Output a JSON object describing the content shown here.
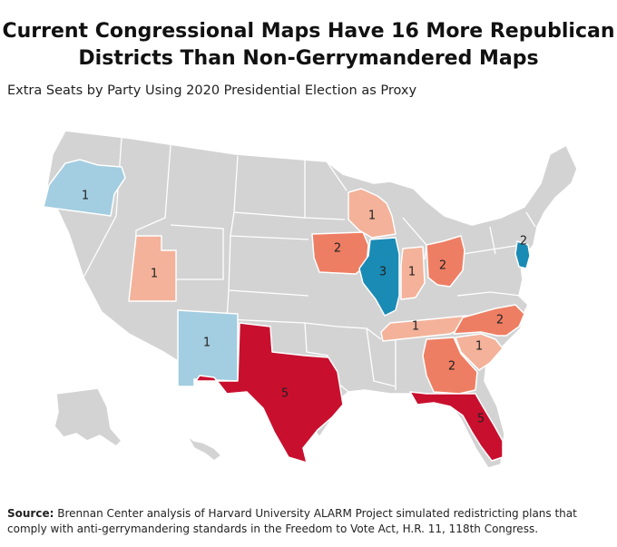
{
  "header": {
    "title_line1": "Current Congressional Maps Have 16 More Republican",
    "title_line2": "Districts Than Non-Gerrymandered Maps",
    "subtitle": "Extra Seats by Party Using 2020 Presidential Election as Proxy"
  },
  "colors": {
    "base": "#d3d3d3",
    "rep_1": "#f3b299",
    "rep_2": "#ee7e63",
    "rep_5": "#c8102e",
    "dem_1": "#a3cde0",
    "dem_strong": "#1a8bb5"
  },
  "states": [
    {
      "name": "Oregon",
      "party": "Democratic",
      "seats": "1"
    },
    {
      "name": "Utah",
      "party": "Republican",
      "seats": "1"
    },
    {
      "name": "New Mexico",
      "party": "Democratic",
      "seats": "1"
    },
    {
      "name": "Texas",
      "party": "Republican",
      "seats": "5"
    },
    {
      "name": "Iowa",
      "party": "Republican",
      "seats": "2"
    },
    {
      "name": "Wisconsin",
      "party": "Republican",
      "seats": "1"
    },
    {
      "name": "Illinois",
      "party": "Democratic",
      "seats": "3"
    },
    {
      "name": "Indiana",
      "party": "Republican",
      "seats": "1"
    },
    {
      "name": "Ohio",
      "party": "Republican",
      "seats": "2"
    },
    {
      "name": "New Jersey",
      "party": "Democratic",
      "seats": "2"
    },
    {
      "name": "Tennessee",
      "party": "Republican",
      "seats": "1"
    },
    {
      "name": "North Carolina",
      "party": "Republican",
      "seats": "2"
    },
    {
      "name": "South Carolina",
      "party": "Republican",
      "seats": "1"
    },
    {
      "name": "Georgia",
      "party": "Republican",
      "seats": "2"
    },
    {
      "name": "Florida",
      "party": "Republican",
      "seats": "5"
    }
  ],
  "source": {
    "label": "Source:",
    "text": " Brennan Center analysis of Harvard University ALARM Project simulated redistricting plans that comply with anti-gerrymandering standards in the Freedom to Vote Act, H.R. 11, 118th Congress."
  }
}
